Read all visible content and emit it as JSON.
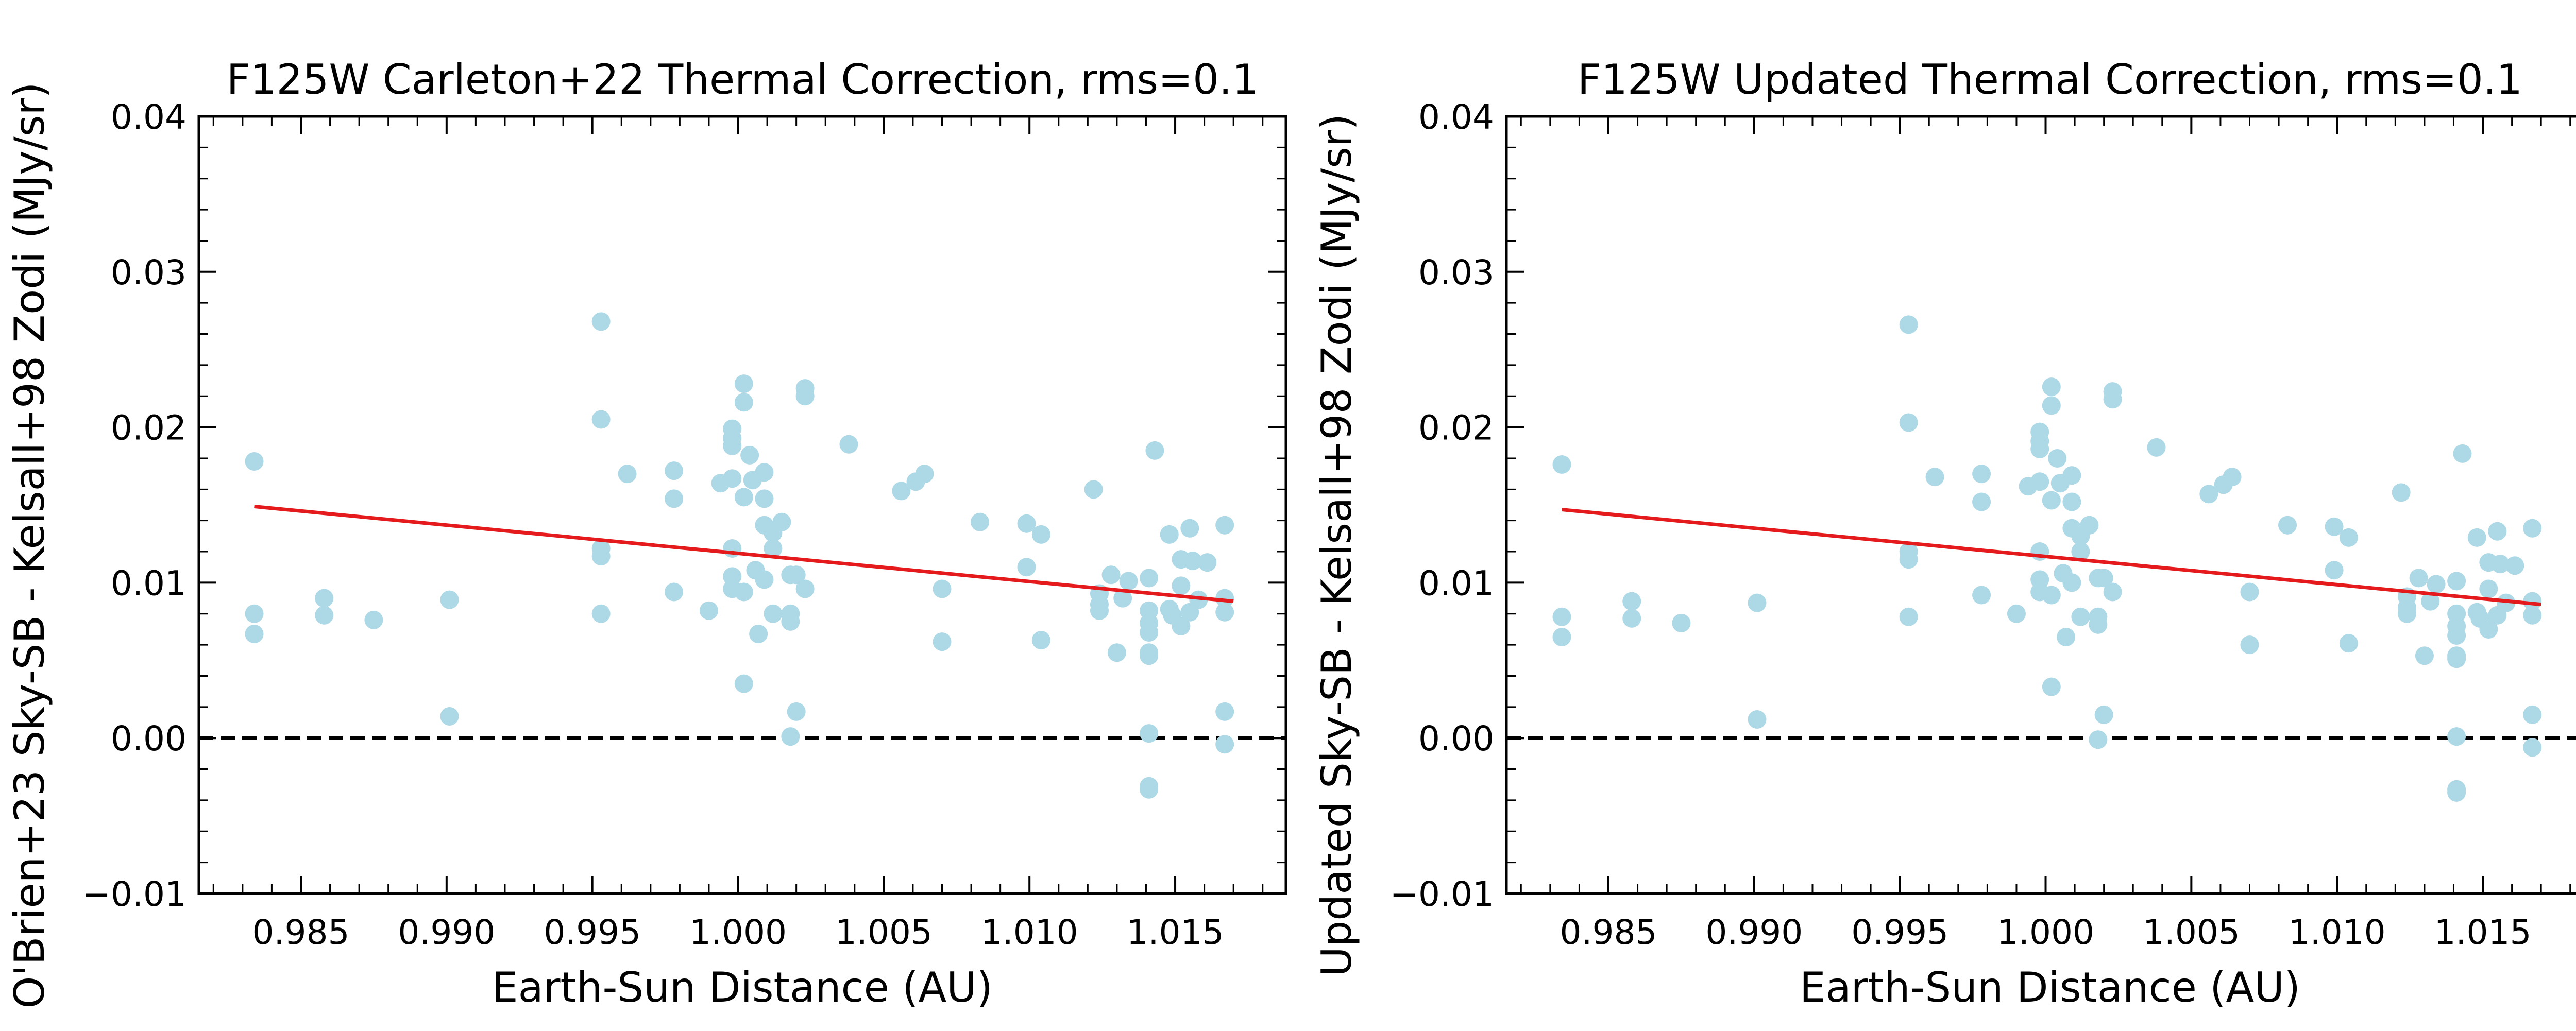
{
  "colors": {
    "points": "#add8e6",
    "fit": "#e41a1c",
    "zero_line": "#000000",
    "axes": "#000000"
  },
  "chart_data": [
    {
      "type": "scatter",
      "title": "F125W Carleton+22 Thermal Correction, rms=0.1",
      "xlabel": "Earth-Sun Distance (AU)",
      "ylabel": "O'Brien+23 Sky-SB - Kelsall+98 Zodi (MJy/sr)",
      "xlim": [
        0.9815,
        1.0188
      ],
      "ylim": [
        -0.01,
        0.04
      ],
      "xticks": [
        "0.985",
        "0.990",
        "0.995",
        "1.000",
        "1.005",
        "1.010",
        "1.015"
      ],
      "yticks": [
        "−0.01",
        "0.00",
        "0.01",
        "0.02",
        "0.03",
        "0.04"
      ],
      "grid": false,
      "reference_line": {
        "y": 0.0,
        "style": "dashed"
      },
      "fit_line": {
        "x": [
          0.9834,
          1.017
        ],
        "y": [
          0.0149,
          0.0088
        ]
      },
      "points": [
        [
          0.9834,
          0.0178
        ],
        [
          0.9834,
          0.008
        ],
        [
          0.9834,
          0.0067
        ],
        [
          0.9858,
          0.009
        ],
        [
          0.9858,
          0.0079
        ],
        [
          0.9875,
          0.0076
        ],
        [
          0.9901,
          0.0089
        ],
        [
          0.9901,
          0.0014
        ],
        [
          0.9953,
          0.0268
        ],
        [
          0.9953,
          0.0205
        ],
        [
          0.9953,
          0.0122
        ],
        [
          0.9953,
          0.0117
        ],
        [
          0.9953,
          0.008
        ],
        [
          0.9962,
          0.017
        ],
        [
          0.9978,
          0.0172
        ],
        [
          0.9978,
          0.0154
        ],
        [
          0.9978,
          0.0094
        ],
        [
          0.999,
          0.0082
        ],
        [
          0.9994,
          0.0164
        ],
        [
          0.9998,
          0.0199
        ],
        [
          0.9998,
          0.0193
        ],
        [
          0.9998,
          0.0188
        ],
        [
          0.9998,
          0.0167
        ],
        [
          0.9998,
          0.0122
        ],
        [
          0.9998,
          0.0104
        ],
        [
          0.9998,
          0.0096
        ],
        [
          1.0002,
          0.0228
        ],
        [
          1.0002,
          0.0216
        ],
        [
          1.0002,
          0.0155
        ],
        [
          1.0002,
          0.0094
        ],
        [
          1.0002,
          0.0035
        ],
        [
          1.0004,
          0.0182
        ],
        [
          1.0005,
          0.0166
        ],
        [
          1.0006,
          0.0108
        ],
        [
          1.0007,
          0.0067
        ],
        [
          1.0009,
          0.0171
        ],
        [
          1.0009,
          0.0154
        ],
        [
          1.0009,
          0.0137
        ],
        [
          1.0009,
          0.0102
        ],
        [
          1.0012,
          0.0132
        ],
        [
          1.0012,
          0.0122
        ],
        [
          1.0012,
          0.008
        ],
        [
          1.0015,
          0.0139
        ],
        [
          1.0018,
          0.0105
        ],
        [
          1.0018,
          0.008
        ],
        [
          1.0018,
          0.0075
        ],
        [
          1.0018,
          0.0001
        ],
        [
          1.002,
          0.0105
        ],
        [
          1.002,
          0.0017
        ],
        [
          1.0023,
          0.0225
        ],
        [
          1.0023,
          0.022
        ],
        [
          1.0023,
          0.0096
        ],
        [
          1.0038,
          0.0189
        ],
        [
          1.0056,
          0.0159
        ],
        [
          1.0061,
          0.0165
        ],
        [
          1.0064,
          0.017
        ],
        [
          1.007,
          0.0096
        ],
        [
          1.007,
          0.0062
        ],
        [
          1.0083,
          0.0139
        ],
        [
          1.0099,
          0.0138
        ],
        [
          1.0099,
          0.011
        ],
        [
          1.0104,
          0.0131
        ],
        [
          1.0104,
          0.0063
        ],
        [
          1.0122,
          0.016
        ],
        [
          1.0124,
          0.0093
        ],
        [
          1.0124,
          0.0086
        ],
        [
          1.0124,
          0.0082
        ],
        [
          1.0128,
          0.0105
        ],
        [
          1.013,
          0.0055
        ],
        [
          1.0132,
          0.009
        ],
        [
          1.0134,
          0.0101
        ],
        [
          1.0141,
          0.0103
        ],
        [
          1.0141,
          0.0082
        ],
        [
          1.0141,
          0.0074
        ],
        [
          1.0141,
          0.0068
        ],
        [
          1.0141,
          0.0055
        ],
        [
          1.0141,
          0.0053
        ],
        [
          1.0141,
          0.0003
        ],
        [
          1.0141,
          -0.0031
        ],
        [
          1.0141,
          -0.0033
        ],
        [
          1.0143,
          0.0185
        ],
        [
          1.0148,
          0.0131
        ],
        [
          1.0148,
          0.0083
        ],
        [
          1.0149,
          0.0079
        ],
        [
          1.0152,
          0.0072
        ],
        [
          1.0152,
          0.0098
        ],
        [
          1.0152,
          0.0115
        ],
        [
          1.0155,
          0.0135
        ],
        [
          1.0155,
          0.0081
        ],
        [
          1.0156,
          0.0114
        ],
        [
          1.0158,
          0.0089
        ],
        [
          1.0161,
          0.0113
        ],
        [
          1.0167,
          0.0137
        ],
        [
          1.0167,
          0.009
        ],
        [
          1.0167,
          0.0081
        ],
        [
          1.0167,
          0.0017
        ],
        [
          1.0167,
          -0.0004
        ]
      ]
    },
    {
      "type": "scatter",
      "title": "F125W Updated Thermal Correction, rms=0.1",
      "xlabel": "Earth-Sun Distance (AU)",
      "ylabel": "Updated Sky-SB - Kelsall+98 Zodi (MJy/sr)",
      "xlim": [
        0.9815,
        1.0188
      ],
      "ylim": [
        -0.01,
        0.04
      ],
      "xticks": [
        "0.985",
        "0.990",
        "0.995",
        "1.000",
        "1.005",
        "1.010",
        "1.015"
      ],
      "yticks": [
        "−0.01",
        "0.00",
        "0.01",
        "0.02",
        "0.03",
        "0.04"
      ],
      "grid": false,
      "reference_line": {
        "y": 0.0,
        "style": "dashed"
      },
      "fit_line": {
        "x": [
          0.9834,
          1.017
        ],
        "y": [
          0.0147,
          0.0086
        ]
      },
      "points": [
        [
          0.9834,
          0.0176
        ],
        [
          0.9834,
          0.0078
        ],
        [
          0.9834,
          0.0065
        ],
        [
          0.9858,
          0.0088
        ],
        [
          0.9858,
          0.0077
        ],
        [
          0.9875,
          0.0074
        ],
        [
          0.9901,
          0.0087
        ],
        [
          0.9901,
          0.0012
        ],
        [
          0.9953,
          0.0266
        ],
        [
          0.9953,
          0.0203
        ],
        [
          0.9953,
          0.012
        ],
        [
          0.9953,
          0.0115
        ],
        [
          0.9953,
          0.0078
        ],
        [
          0.9962,
          0.0168
        ],
        [
          0.9978,
          0.017
        ],
        [
          0.9978,
          0.0152
        ],
        [
          0.9978,
          0.0092
        ],
        [
          0.999,
          0.008
        ],
        [
          0.9994,
          0.0162
        ],
        [
          0.9998,
          0.0197
        ],
        [
          0.9998,
          0.0191
        ],
        [
          0.9998,
          0.0186
        ],
        [
          0.9998,
          0.0165
        ],
        [
          0.9998,
          0.012
        ],
        [
          0.9998,
          0.0102
        ],
        [
          0.9998,
          0.0094
        ],
        [
          1.0002,
          0.0226
        ],
        [
          1.0002,
          0.0214
        ],
        [
          1.0002,
          0.0153
        ],
        [
          1.0002,
          0.0092
        ],
        [
          1.0002,
          0.0033
        ],
        [
          1.0004,
          0.018
        ],
        [
          1.0005,
          0.0164
        ],
        [
          1.0006,
          0.0106
        ],
        [
          1.0007,
          0.0065
        ],
        [
          1.0009,
          0.0169
        ],
        [
          1.0009,
          0.0152
        ],
        [
          1.0009,
          0.0135
        ],
        [
          1.0009,
          0.01
        ],
        [
          1.0012,
          0.013
        ],
        [
          1.0012,
          0.012
        ],
        [
          1.0012,
          0.0078
        ],
        [
          1.0015,
          0.0137
        ],
        [
          1.0018,
          0.0103
        ],
        [
          1.0018,
          0.0078
        ],
        [
          1.0018,
          0.0073
        ],
        [
          1.0018,
          -0.0001
        ],
        [
          1.002,
          0.0103
        ],
        [
          1.002,
          0.0015
        ],
        [
          1.0023,
          0.0223
        ],
        [
          1.0023,
          0.0218
        ],
        [
          1.0023,
          0.0094
        ],
        [
          1.0038,
          0.0187
        ],
        [
          1.0056,
          0.0157
        ],
        [
          1.0061,
          0.0163
        ],
        [
          1.0064,
          0.0168
        ],
        [
          1.007,
          0.0094
        ],
        [
          1.007,
          0.006
        ],
        [
          1.0083,
          0.0137
        ],
        [
          1.0099,
          0.0136
        ],
        [
          1.0099,
          0.0108
        ],
        [
          1.0104,
          0.0129
        ],
        [
          1.0104,
          0.0061
        ],
        [
          1.0122,
          0.0158
        ],
        [
          1.0124,
          0.0091
        ],
        [
          1.0124,
          0.0084
        ],
        [
          1.0124,
          0.008
        ],
        [
          1.0128,
          0.0103
        ],
        [
          1.013,
          0.0053
        ],
        [
          1.0132,
          0.0088
        ],
        [
          1.0134,
          0.0099
        ],
        [
          1.0141,
          0.0101
        ],
        [
          1.0141,
          0.008
        ],
        [
          1.0141,
          0.0072
        ],
        [
          1.0141,
          0.0066
        ],
        [
          1.0141,
          0.0053
        ],
        [
          1.0141,
          0.0051
        ],
        [
          1.0141,
          0.0001
        ],
        [
          1.0141,
          -0.0033
        ],
        [
          1.0141,
          -0.0035
        ],
        [
          1.0143,
          0.0183
        ],
        [
          1.0148,
          0.0129
        ],
        [
          1.0148,
          0.0081
        ],
        [
          1.0149,
          0.0077
        ],
        [
          1.0152,
          0.007
        ],
        [
          1.0152,
          0.0096
        ],
        [
          1.0152,
          0.0113
        ],
        [
          1.0155,
          0.0133
        ],
        [
          1.0155,
          0.0079
        ],
        [
          1.0156,
          0.0112
        ],
        [
          1.0158,
          0.0087
        ],
        [
          1.0161,
          0.0111
        ],
        [
          1.0167,
          0.0135
        ],
        [
          1.0167,
          0.0088
        ],
        [
          1.0167,
          0.0079
        ],
        [
          1.0167,
          0.0015
        ],
        [
          1.0167,
          -0.0006
        ]
      ]
    }
  ]
}
